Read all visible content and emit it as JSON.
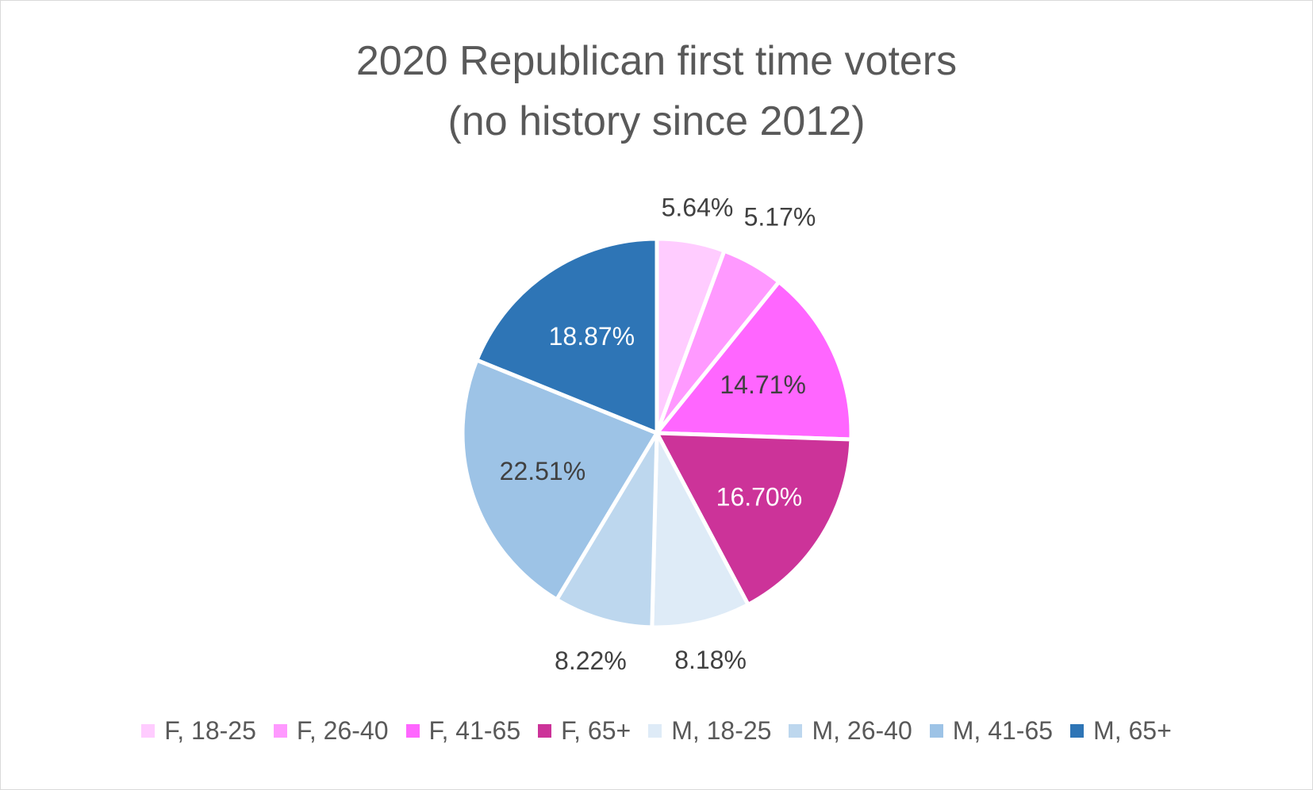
{
  "chart_data": {
    "type": "pie",
    "title_lines": [
      "2020 Republican first time voters",
      "(no history since 2012)"
    ],
    "categories": [
      "F, 18-25",
      "F, 26-40",
      "F, 41-65",
      "F, 65+",
      "M, 18-25",
      "M, 26-40",
      "M, 41-65",
      "M, 65+"
    ],
    "values": [
      5.64,
      5.17,
      14.71,
      16.7,
      8.18,
      8.22,
      22.51,
      18.87
    ],
    "labels": [
      "5.64%",
      "5.17%",
      "14.71%",
      "16.70%",
      "8.18%",
      "8.22%",
      "22.51%",
      "18.87%"
    ],
    "colors": [
      "#ffccff",
      "#ff99ff",
      "#ff66ff",
      "#cc3399",
      "#deebf7",
      "#bdd7ee",
      "#9dc3e6",
      "#2e75b6"
    ],
    "label_colors": [
      "#404040",
      "#404040",
      "#404040",
      "#ffffff",
      "#404040",
      "#404040",
      "#404040",
      "#ffffff"
    ],
    "legend_position": "bottom",
    "start_angle": "12 o'clock",
    "direction": "clockwise"
  }
}
